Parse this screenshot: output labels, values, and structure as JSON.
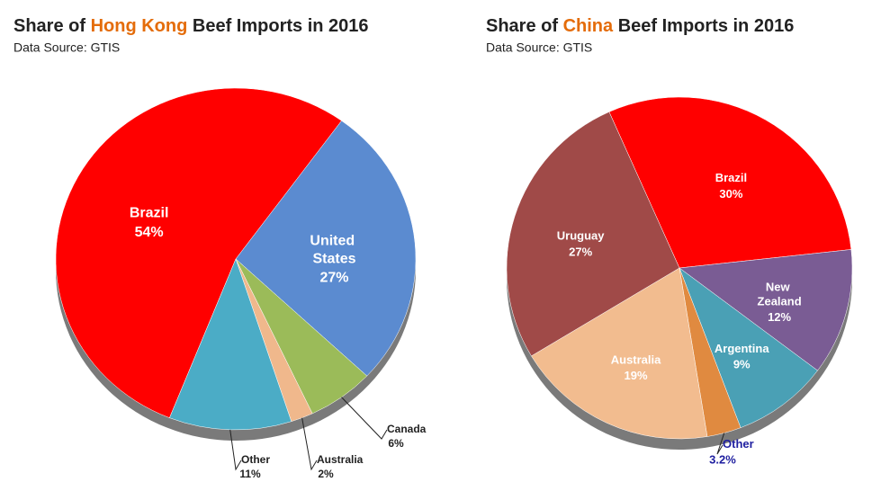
{
  "chart_data": [
    {
      "type": "pie",
      "title": [
        "Share of ",
        "Hong Kong",
        " Beef Imports in 2016"
      ],
      "title_highlight_color": "#e46c0a",
      "subtitle": "Data Source: GTIS",
      "categories": [
        "Brazil",
        "United States",
        "Canada",
        "Australia",
        "Other"
      ],
      "values": [
        54,
        27,
        6,
        2,
        11
      ],
      "value_labels": [
        "54%",
        "27%",
        "6%",
        "2%",
        "11%"
      ],
      "colors": [
        "#ff0000",
        "#5b8bd0",
        "#9bbb59",
        "#f0b88c",
        "#4bacc6"
      ]
    },
    {
      "type": "pie",
      "title": [
        "Share of ",
        "China",
        " Beef Imports in 2016"
      ],
      "title_highlight_color": "#e46c0a",
      "subtitle": "Data Source: GTIS",
      "categories": [
        "Brazil",
        "New Zealand",
        "Argentina",
        "Other",
        "Australia",
        "Uruguay"
      ],
      "values": [
        30,
        12,
        9,
        3.2,
        19,
        27
      ],
      "value_labels": [
        "30%",
        "12%",
        "9%",
        "3.2%",
        "19%",
        "27%"
      ],
      "colors": [
        "#ff0000",
        "#7a5c94",
        "#4aa0b5",
        "#e08a40",
        "#f2bc8f",
        "#a04a48"
      ]
    }
  ]
}
